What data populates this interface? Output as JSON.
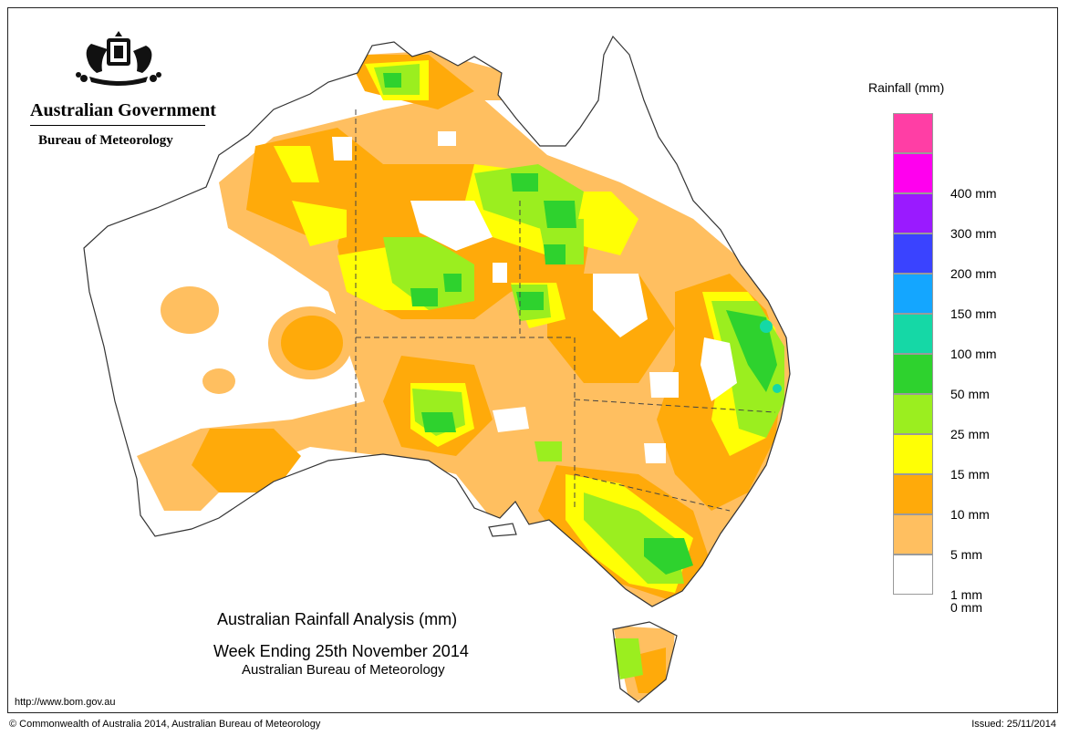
{
  "header": {
    "government": "Australian Government",
    "bureau": "Bureau of Meteorology"
  },
  "legend": {
    "title": "Rainfall (mm)",
    "classes": [
      {
        "label": "",
        "color": "#ff3ea5"
      },
      {
        "label": "400 mm",
        "color": "#ff00ee"
      },
      {
        "label": "300 mm",
        "color": "#9a1aff"
      },
      {
        "label": "200 mm",
        "color": "#3a43ff"
      },
      {
        "label": "150 mm",
        "color": "#14a6ff"
      },
      {
        "label": "100 mm",
        "color": "#15d8a6"
      },
      {
        "label": "50 mm",
        "color": "#2ed22e"
      },
      {
        "label": "25 mm",
        "color": "#9bee1f"
      },
      {
        "label": "15 mm",
        "color": "#ffff05"
      },
      {
        "label": "10 mm",
        "color": "#ffaa0a"
      },
      {
        "label": "5 mm",
        "color": "#ffbf60"
      },
      {
        "label": "1 mm",
        "color": "#ffffff"
      }
    ],
    "bottom_label": "0 mm"
  },
  "title": {
    "line1": "Australian Rainfall Analysis (mm)",
    "line2": "Week Ending 25th November 2014",
    "line3": "Australian Bureau of Meteorology"
  },
  "footer": {
    "url": "http://www.bom.gov.au",
    "copyright": "© Commonwealth of Australia 2014, Australian Bureau of Meteorology",
    "issued": "Issued: 25/11/2014"
  }
}
